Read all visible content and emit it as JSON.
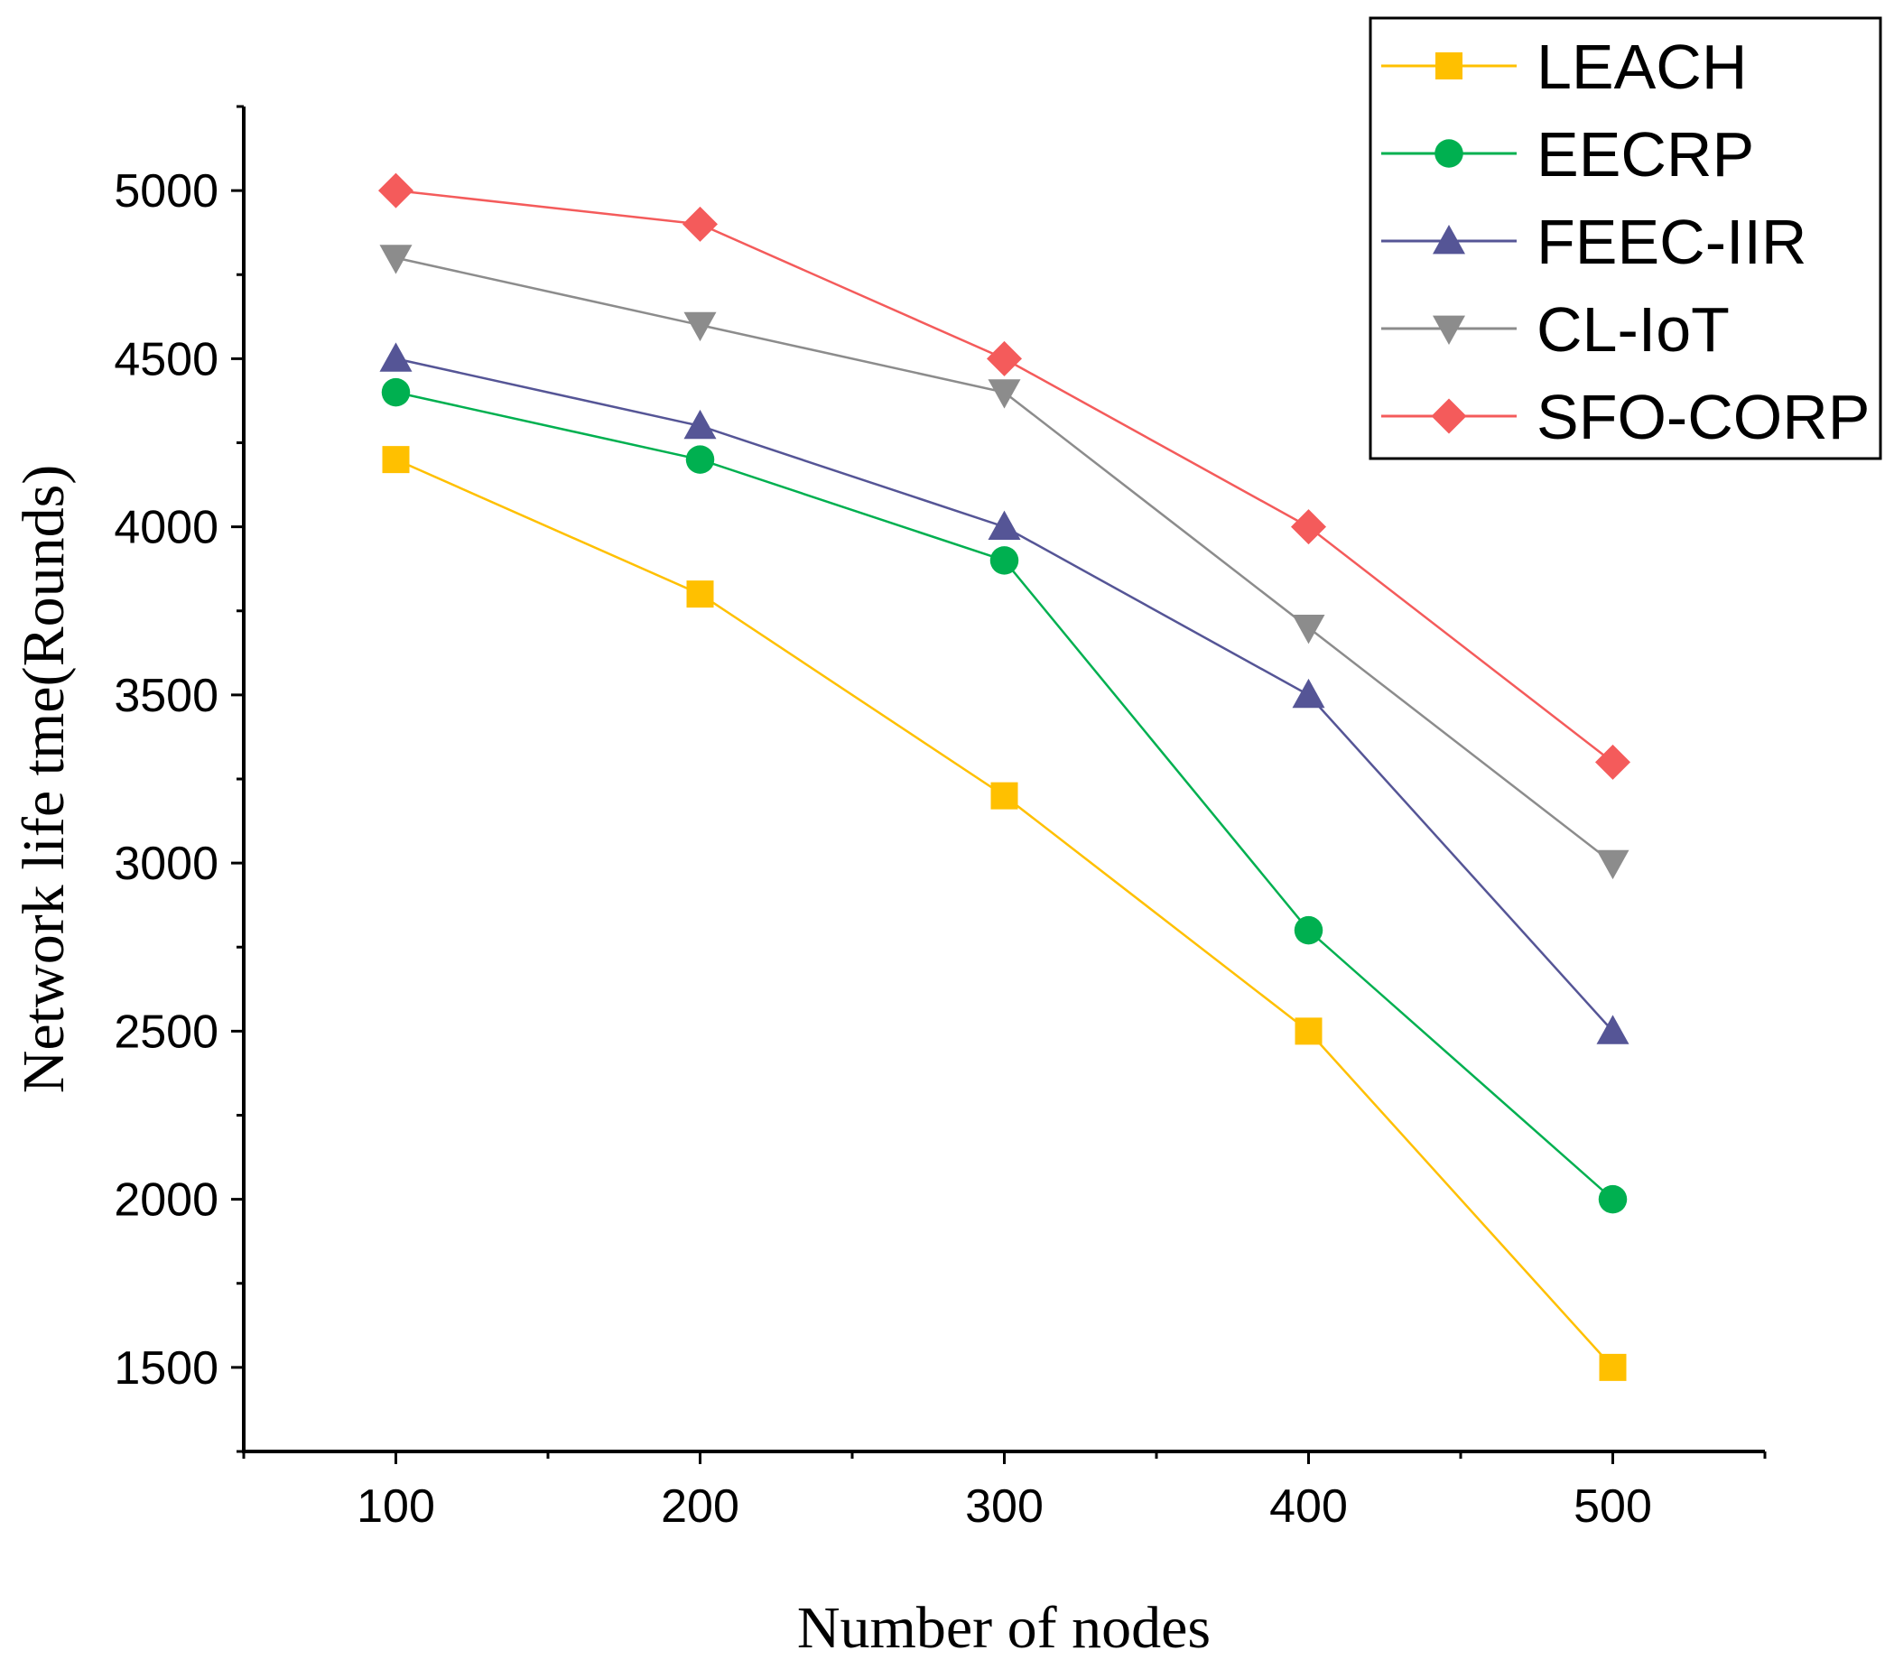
{
  "chart_data": {
    "type": "line",
    "title": "",
    "xlabel": "Number of nodes",
    "ylabel": "Network life tme(Rounds)",
    "x": [
      100,
      200,
      300,
      400,
      500
    ],
    "xlim": [
      50,
      550
    ],
    "ylim": [
      1250,
      5250
    ],
    "xticks": [
      "100",
      "200",
      "300",
      "400",
      "500"
    ],
    "yticks": [
      "1500",
      "2000",
      "2500",
      "3000",
      "3500",
      "4000",
      "4500",
      "5000"
    ],
    "legend_position": "top-right",
    "series": [
      {
        "name": "LEACH",
        "marker": "square",
        "color": "#FFC000",
        "values": [
          4200,
          3800,
          3200,
          2500,
          1500
        ]
      },
      {
        "name": "EECRP",
        "marker": "circle",
        "color": "#00B050",
        "values": [
          4400,
          4200,
          3900,
          2800,
          2000
        ]
      },
      {
        "name": "FEEC-IIR",
        "marker": "triangle-up",
        "color": "#555596",
        "values": [
          4500,
          4300,
          4000,
          3500,
          2500
        ]
      },
      {
        "name": "CL-IoT",
        "marker": "triangle-down",
        "color": "#8C8C8C",
        "values": [
          4800,
          4600,
          4400,
          3700,
          3000
        ]
      },
      {
        "name": "SFO-CORP",
        "marker": "diamond",
        "color": "#F45B5B",
        "values": [
          5000,
          4900,
          4500,
          4000,
          3300
        ]
      }
    ]
  }
}
